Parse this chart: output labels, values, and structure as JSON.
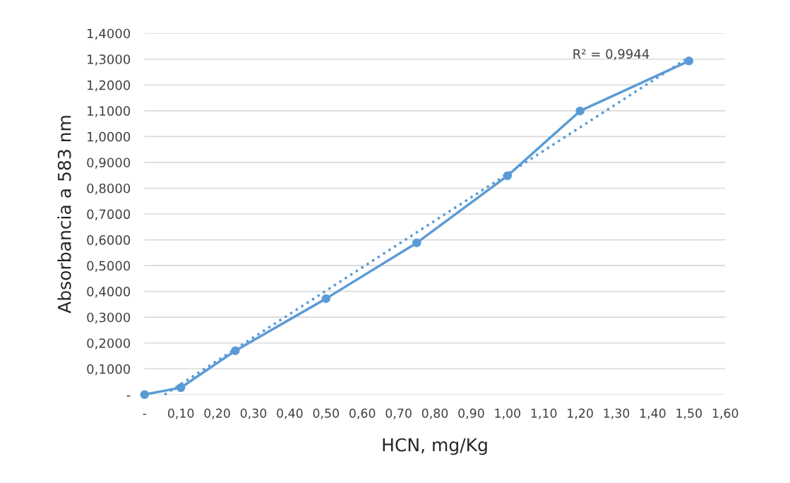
{
  "chart_data": {
    "type": "line",
    "xlabel": "HCN, mg/Kg",
    "ylabel": "Absorbancia a 583 nm",
    "x": [
      0,
      0.1,
      0.25,
      0.5,
      0.75,
      1.0,
      1.2,
      1.5
    ],
    "series": [
      {
        "color": "#5b9bd5",
        "values": [
          0,
          0.027,
          0.17,
          0.372,
          0.588,
          0.848,
          1.099,
          1.293
        ],
        "marker": "circle",
        "line_style": "solid"
      },
      {
        "type": "line",
        "color": "#5b9bd5",
        "x": [
          0.055,
          1.5
        ],
        "values": [
          0,
          1.307
        ],
        "marker": "none",
        "line_style": "dotted"
      }
    ],
    "annotations": [
      "R² = 0,9944"
    ],
    "xlim": [
      0,
      1.6
    ],
    "xticks": [
      {
        "value": 0,
        "label": "-"
      },
      {
        "value": 0.1,
        "label": "0,10"
      },
      {
        "value": 0.2,
        "label": "0,20"
      },
      {
        "value": 0.3,
        "label": "0,30"
      },
      {
        "value": 0.4,
        "label": "0,40"
      },
      {
        "value": 0.5,
        "label": "0,50"
      },
      {
        "value": 0.6,
        "label": "0,60"
      },
      {
        "value": 0.7,
        "label": "0,70"
      },
      {
        "value": 0.8,
        "label": "0,80"
      },
      {
        "value": 0.9,
        "label": "0,90"
      },
      {
        "value": 1.0,
        "label": "1,00"
      },
      {
        "value": 1.1,
        "label": "1,10"
      },
      {
        "value": 1.2,
        "label": "1,20"
      },
      {
        "value": 1.3,
        "label": "1,30"
      },
      {
        "value": 1.4,
        "label": "1,40"
      },
      {
        "value": 1.5,
        "label": "1,50"
      },
      {
        "value": 1.6,
        "label": "1,60"
      }
    ],
    "ylim": [
      0,
      1.4
    ],
    "yticks": [
      {
        "value": 0,
        "label": "-"
      },
      {
        "value": 0.1,
        "label": "0,1000"
      },
      {
        "value": 0.2,
        "label": "0,2000"
      },
      {
        "value": 0.3,
        "label": "0,3000"
      },
      {
        "value": 0.4,
        "label": "0,4000"
      },
      {
        "value": 0.5,
        "label": "0,5000"
      },
      {
        "value": 0.6,
        "label": "0,6000"
      },
      {
        "value": 0.7,
        "label": "0,7000"
      },
      {
        "value": 0.8,
        "label": "0,8000"
      },
      {
        "value": 0.9,
        "label": "0,9000"
      },
      {
        "value": 1.0,
        "label": "1,0000"
      },
      {
        "value": 1.1,
        "label": "1,1000"
      },
      {
        "value": 1.2,
        "label": "1,2000"
      },
      {
        "value": 1.3,
        "label": "1,3000"
      },
      {
        "value": 1.4,
        "label": "1,4000"
      }
    ],
    "grid": "y"
  }
}
